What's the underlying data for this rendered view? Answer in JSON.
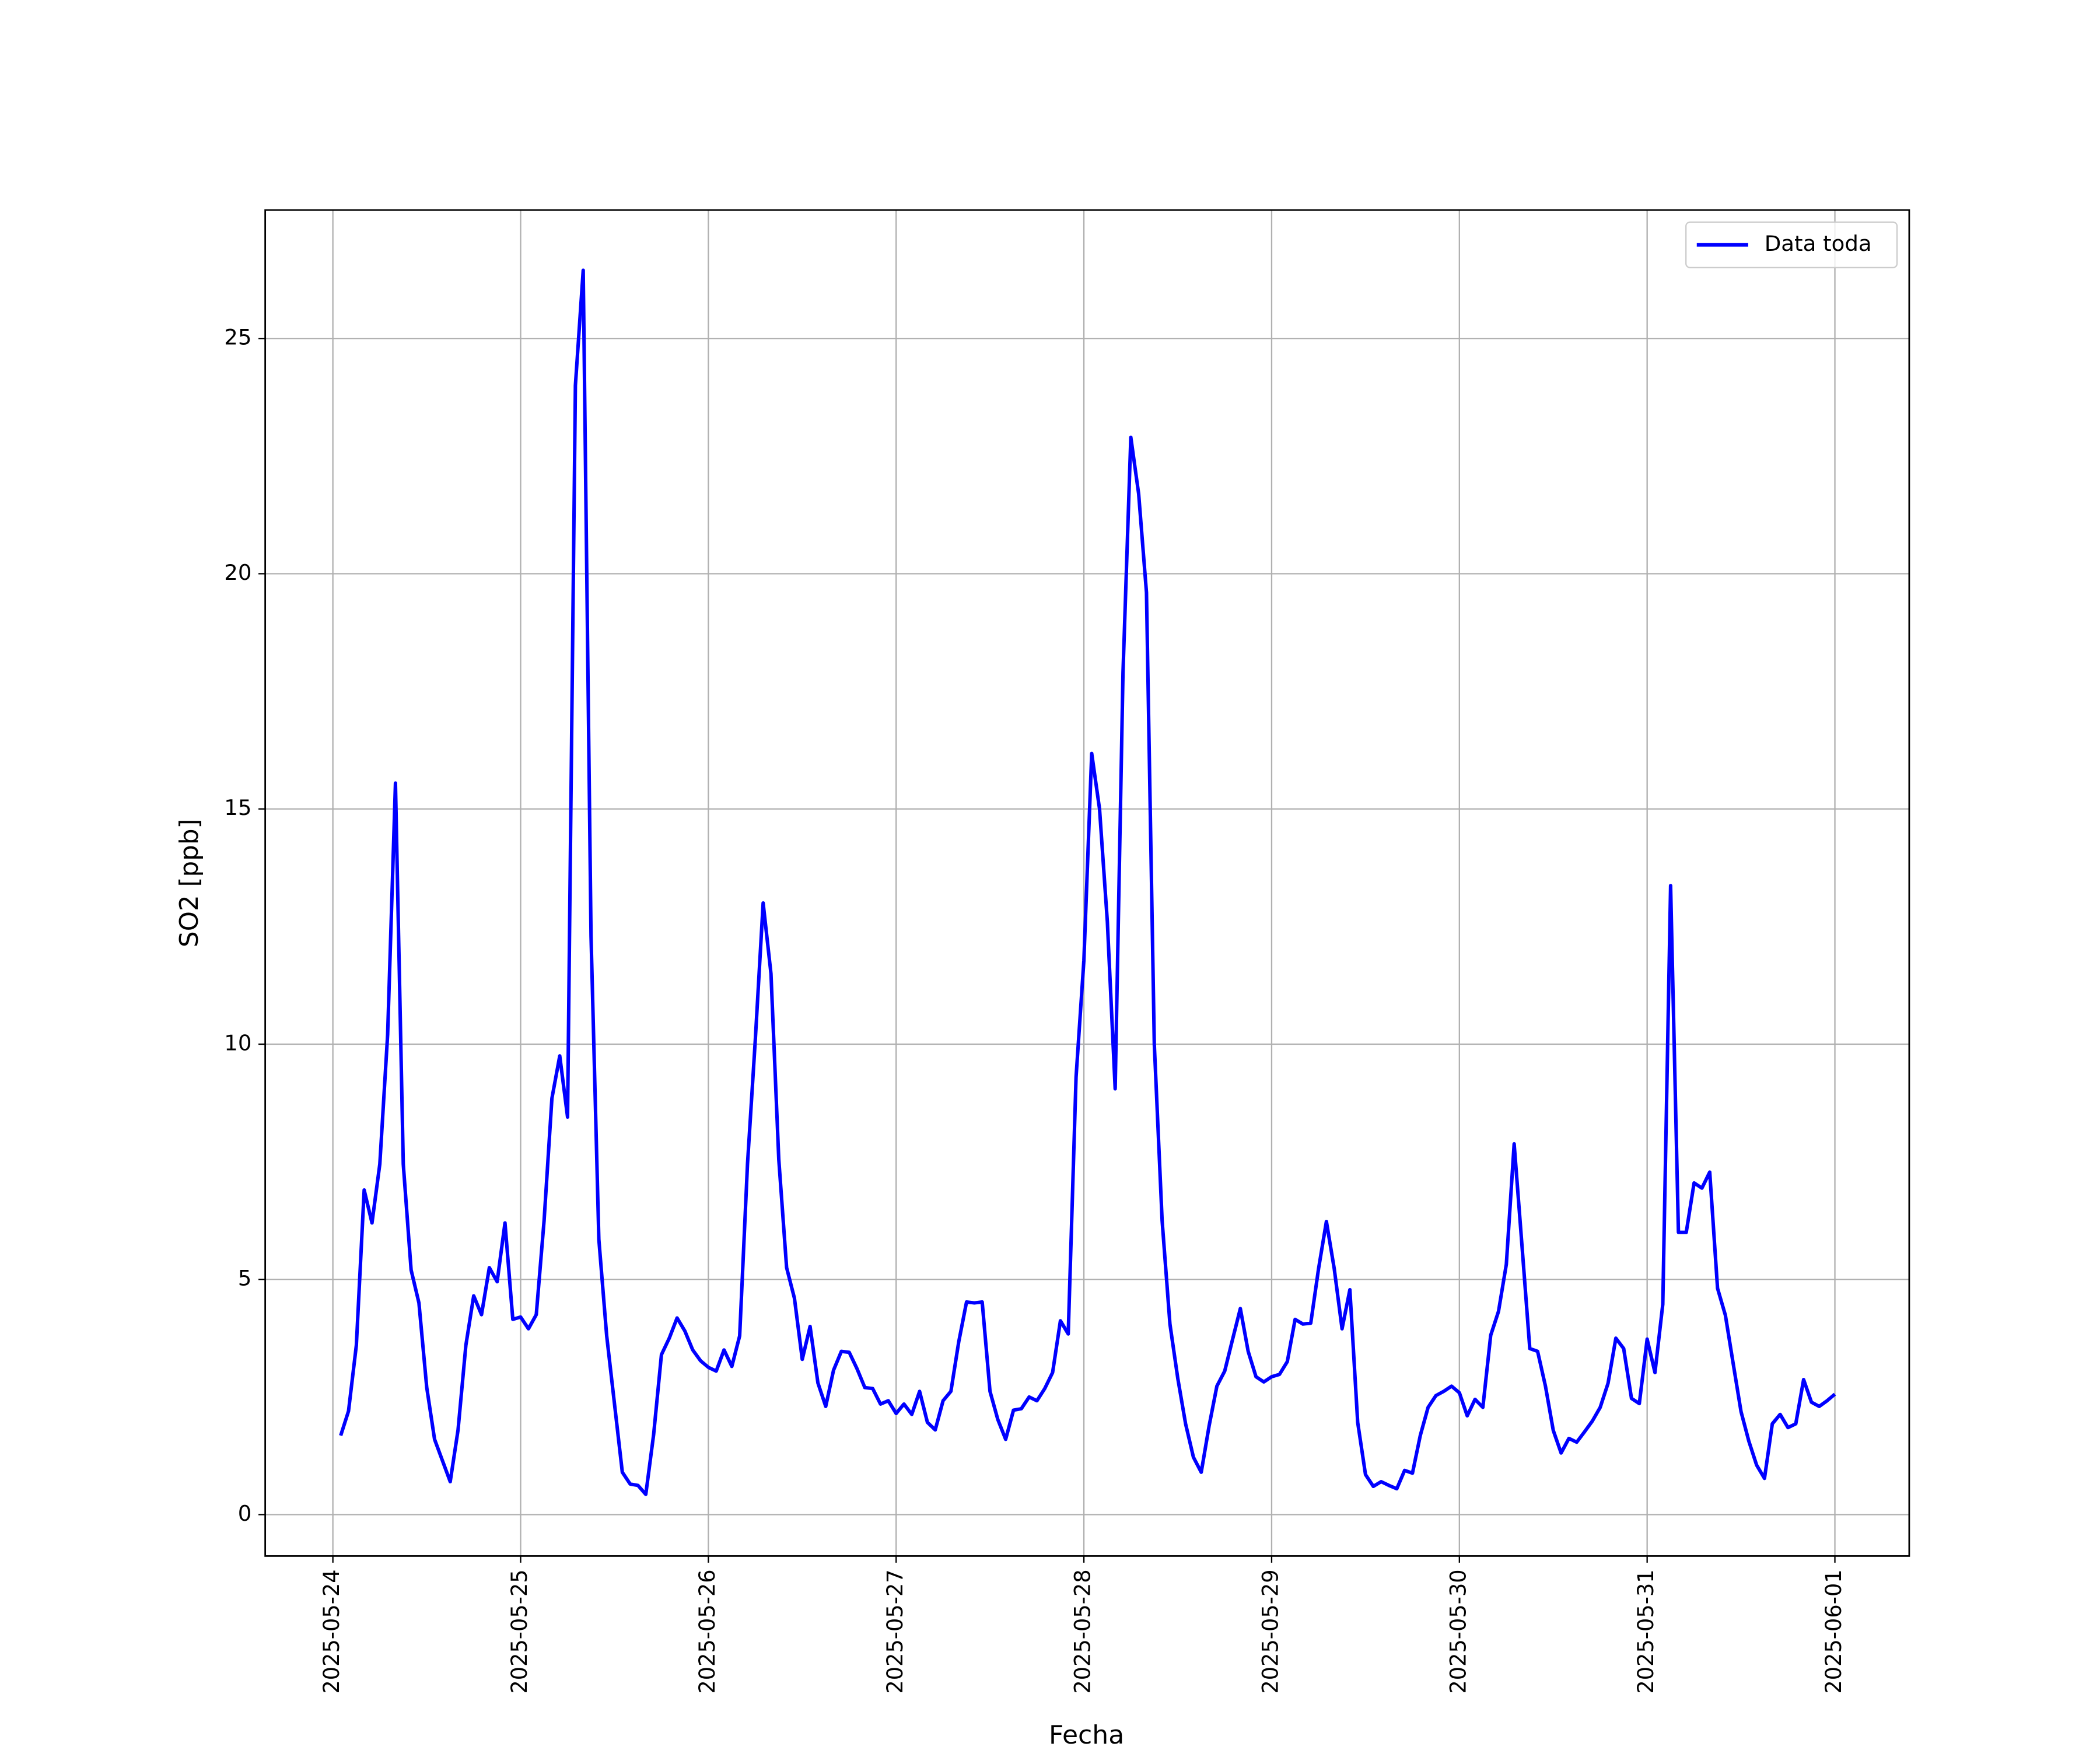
{
  "chart_data": {
    "type": "line",
    "xlabel": "Fecha",
    "ylabel": "SO2 [ppb]",
    "grid": true,
    "legend": "upper right",
    "xlim": [
      "2025-05-23 15:21",
      "2025-06-01 09:30"
    ],
    "ylim": [
      -0.88,
      27.73
    ],
    "xticks": [
      "2025-05-24",
      "2025-05-25",
      "2025-05-26",
      "2025-05-27",
      "2025-05-28",
      "2025-05-29",
      "2025-05-30",
      "2025-05-31",
      "2025-06-01"
    ],
    "yticks": [
      0,
      5,
      10,
      15,
      20,
      25
    ],
    "x": [
      "2025-05-24 01:00",
      "2025-05-24 02:00",
      "2025-05-24 03:00",
      "2025-05-24 04:00",
      "2025-05-24 05:00",
      "2025-05-24 06:00",
      "2025-05-24 07:00",
      "2025-05-24 08:00",
      "2025-05-24 09:00",
      "2025-05-24 10:00",
      "2025-05-24 11:00",
      "2025-05-24 12:00",
      "2025-05-24 13:00",
      "2025-05-24 14:00",
      "2025-05-24 15:00",
      "2025-05-24 16:00",
      "2025-05-24 17:00",
      "2025-05-24 18:00",
      "2025-05-24 19:00",
      "2025-05-24 20:00",
      "2025-05-24 21:00",
      "2025-05-24 22:00",
      "2025-05-24 23:00",
      "2025-05-25 00:00",
      "2025-05-25 01:00",
      "2025-05-25 02:00",
      "2025-05-25 03:00",
      "2025-05-25 04:00",
      "2025-05-25 05:00",
      "2025-05-25 06:00",
      "2025-05-25 07:00",
      "2025-05-25 08:00",
      "2025-05-25 09:00",
      "2025-05-25 10:00",
      "2025-05-25 11:00",
      "2025-05-25 12:00",
      "2025-05-25 13:00",
      "2025-05-25 14:00",
      "2025-05-25 15:00",
      "2025-05-25 16:00",
      "2025-05-25 17:00",
      "2025-05-25 18:00",
      "2025-05-25 19:00",
      "2025-05-25 20:00",
      "2025-05-25 21:00",
      "2025-05-25 22:00",
      "2025-05-25 23:00",
      "2025-05-26 00:00",
      "2025-05-26 01:00",
      "2025-05-26 02:00",
      "2025-05-26 03:00",
      "2025-05-26 04:00",
      "2025-05-26 05:00",
      "2025-05-26 06:00",
      "2025-05-26 07:00",
      "2025-05-26 08:00",
      "2025-05-26 09:00",
      "2025-05-26 10:00",
      "2025-05-26 11:00",
      "2025-05-26 12:00",
      "2025-05-26 13:00",
      "2025-05-26 14:00",
      "2025-05-26 15:00",
      "2025-05-26 16:00",
      "2025-05-26 17:00",
      "2025-05-26 18:00",
      "2025-05-26 19:00",
      "2025-05-26 20:00",
      "2025-05-26 21:00",
      "2025-05-26 22:00",
      "2025-05-26 23:00",
      "2025-05-27 00:00",
      "2025-05-27 01:00",
      "2025-05-27 02:00",
      "2025-05-27 03:00",
      "2025-05-27 04:00",
      "2025-05-27 05:00",
      "2025-05-27 06:00",
      "2025-05-27 07:00",
      "2025-05-27 08:00",
      "2025-05-27 09:00",
      "2025-05-27 10:00",
      "2025-05-27 11:00",
      "2025-05-27 12:00",
      "2025-05-27 13:00",
      "2025-05-27 14:00",
      "2025-05-27 15:00",
      "2025-05-27 16:00",
      "2025-05-27 17:00",
      "2025-05-27 18:00",
      "2025-05-27 19:00",
      "2025-05-27 20:00",
      "2025-05-27 21:00",
      "2025-05-27 22:00",
      "2025-05-27 23:00",
      "2025-05-28 00:00",
      "2025-05-28 01:00",
      "2025-05-28 02:00",
      "2025-05-28 03:00",
      "2025-05-28 04:00",
      "2025-05-28 05:00",
      "2025-05-28 06:00",
      "2025-05-28 07:00",
      "2025-05-28 08:00",
      "2025-05-28 09:00",
      "2025-05-28 10:00",
      "2025-05-28 11:00",
      "2025-05-28 12:00",
      "2025-05-28 13:00",
      "2025-05-28 14:00",
      "2025-05-28 15:00",
      "2025-05-28 16:00",
      "2025-05-28 17:00",
      "2025-05-28 18:00",
      "2025-05-28 19:00",
      "2025-05-28 20:00",
      "2025-05-28 21:00",
      "2025-05-28 22:00",
      "2025-05-28 23:00",
      "2025-05-29 00:00",
      "2025-05-29 01:00",
      "2025-05-29 02:00",
      "2025-05-29 03:00",
      "2025-05-29 04:00",
      "2025-05-29 05:00",
      "2025-05-29 06:00",
      "2025-05-29 07:00",
      "2025-05-29 08:00",
      "2025-05-29 09:00",
      "2025-05-29 10:00",
      "2025-05-29 11:00",
      "2025-05-29 12:00",
      "2025-05-29 13:00",
      "2025-05-29 14:00",
      "2025-05-29 15:00",
      "2025-05-29 16:00",
      "2025-05-29 17:00",
      "2025-05-29 18:00",
      "2025-05-29 19:00",
      "2025-05-29 20:00",
      "2025-05-29 21:00",
      "2025-05-29 22:00",
      "2025-05-29 23:00",
      "2025-05-30 00:00",
      "2025-05-30 01:00",
      "2025-05-30 02:00",
      "2025-05-30 03:00",
      "2025-05-30 04:00",
      "2025-05-30 05:00",
      "2025-05-30 06:00",
      "2025-05-30 07:00",
      "2025-05-30 08:00",
      "2025-05-30 09:00",
      "2025-05-30 10:00",
      "2025-05-30 11:00",
      "2025-05-30 12:00",
      "2025-05-30 13:00",
      "2025-05-30 14:00",
      "2025-05-30 15:00",
      "2025-05-30 16:00",
      "2025-05-30 17:00",
      "2025-05-30 18:00",
      "2025-05-30 19:00",
      "2025-05-30 20:00",
      "2025-05-30 21:00",
      "2025-05-30 22:00",
      "2025-05-30 23:00",
      "2025-05-31 00:00",
      "2025-05-31 01:00",
      "2025-05-31 02:00",
      "2025-05-31 03:00",
      "2025-05-31 04:00",
      "2025-05-31 05:00",
      "2025-05-31 06:00",
      "2025-05-31 07:00",
      "2025-05-31 08:00",
      "2025-05-31 09:00",
      "2025-05-31 10:00",
      "2025-05-31 11:00",
      "2025-05-31 12:00",
      "2025-05-31 13:00",
      "2025-05-31 14:00",
      "2025-05-31 15:00",
      "2025-05-31 16:00",
      "2025-05-31 17:00",
      "2025-05-31 18:00",
      "2025-05-31 19:00",
      "2025-05-31 20:00",
      "2025-05-31 21:00",
      "2025-05-31 22:00",
      "2025-05-31 23:00",
      "2025-06-01 00:00"
    ],
    "series": [
      {
        "name": "Data toda",
        "color": "#0000ff",
        "values": [
          1.68,
          2.2,
          3.6,
          6.9,
          6.2,
          7.45,
          10.2,
          15.55,
          7.45,
          5.2,
          4.5,
          2.7,
          1.6,
          1.15,
          0.7,
          1.8,
          3.6,
          4.65,
          4.25,
          5.25,
          4.95,
          6.2,
          4.15,
          4.2,
          3.95,
          4.25,
          6.25,
          8.85,
          9.75,
          8.45,
          24.0,
          26.45,
          12.3,
          5.85,
          3.8,
          2.35,
          0.9,
          0.65,
          0.62,
          0.43,
          1.7,
          3.4,
          3.75,
          4.18,
          3.9,
          3.5,
          3.27,
          3.13,
          3.05,
          3.5,
          3.15,
          3.8,
          7.45,
          10.1,
          13.0,
          11.5,
          7.55,
          5.25,
          4.6,
          3.3,
          4.0,
          2.8,
          2.3,
          3.07,
          3.47,
          3.45,
          3.1,
          2.7,
          2.68,
          2.35,
          2.42,
          2.15,
          2.35,
          2.13,
          2.62,
          1.96,
          1.8,
          2.42,
          2.62,
          3.67,
          4.52,
          4.5,
          4.52,
          2.62,
          2.02,
          1.6,
          2.22,
          2.25,
          2.5,
          2.42,
          2.68,
          3.02,
          4.12,
          3.84,
          9.3,
          11.78,
          16.18,
          15.0,
          12.6,
          9.05,
          17.9,
          22.9,
          21.7,
          19.6,
          10.0,
          6.25,
          4.05,
          2.9,
          1.93,
          1.22,
          0.9,
          1.88,
          2.73,
          3.05,
          3.72,
          4.38,
          3.47,
          2.93,
          2.82,
          2.93,
          2.98,
          3.25,
          4.15,
          4.05,
          4.07,
          5.23,
          6.23,
          5.23,
          3.95,
          4.78,
          1.96,
          0.85,
          0.6,
          0.7,
          0.62,
          0.55,
          0.94,
          0.88,
          1.68,
          2.28,
          2.53,
          2.62,
          2.73,
          2.59,
          2.1,
          2.45,
          2.28,
          3.81,
          4.32,
          5.32,
          7.88,
          5.72,
          3.53,
          3.47,
          2.73,
          1.79,
          1.31,
          1.62,
          1.54,
          1.76,
          1.99,
          2.28,
          2.79,
          3.75,
          3.53,
          2.47,
          2.36,
          3.73,
          3.02,
          4.47,
          13.37,
          6.0,
          6.0,
          7.05,
          6.94,
          7.28,
          4.81,
          4.24,
          3.21,
          2.19,
          1.56,
          1.05,
          0.77,
          1.93,
          2.13,
          1.85,
          1.93,
          2.87,
          2.39,
          2.3,
          2.42,
          2.56
        ]
      }
    ]
  }
}
